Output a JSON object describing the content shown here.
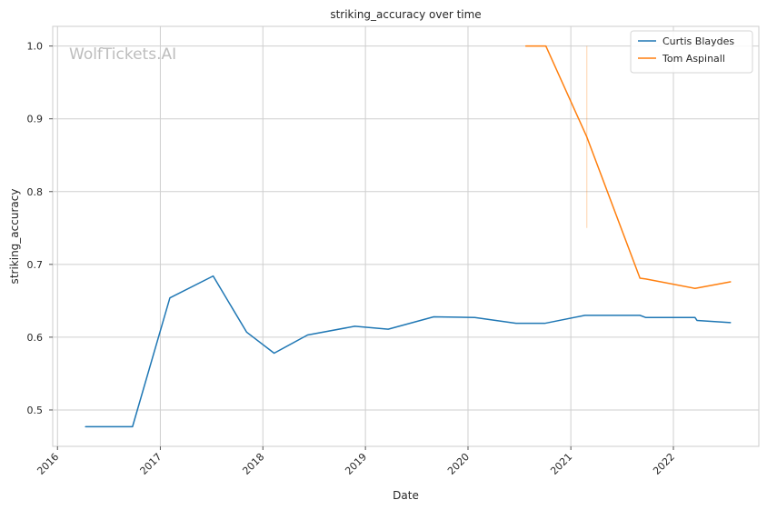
{
  "chart_data": {
    "type": "line",
    "title": "striking_accuracy over time",
    "xlabel": "Date",
    "ylabel": "striking_accuracy",
    "watermark": "WolfTickets.AI",
    "xlim": [
      "2015-12-15",
      "2022-11-01"
    ],
    "ylim": [
      0.45,
      1.027
    ],
    "x_ticks": [
      "2016-01-01",
      "2017-01-01",
      "2018-01-01",
      "2019-01-01",
      "2020-01-01",
      "2021-01-01",
      "2022-01-01"
    ],
    "x_tick_labels": [
      "2016",
      "2017",
      "2018",
      "2019",
      "2020",
      "2021",
      "2022"
    ],
    "y_ticks": [
      0.5,
      0.6,
      0.7,
      0.8,
      0.9,
      1.0
    ],
    "y_tick_labels": [
      "0.5",
      "0.6",
      "0.7",
      "0.8",
      "0.9",
      "1.0"
    ],
    "grid": true,
    "legend_position": "top-right",
    "series": [
      {
        "name": "Curtis Blaydes",
        "color": "#1f77b4",
        "points": [
          [
            "2016-04-10",
            0.477
          ],
          [
            "2016-09-24",
            0.477
          ],
          [
            "2017-02-04",
            0.654
          ],
          [
            "2017-07-08",
            0.684
          ],
          [
            "2017-11-04",
            0.607
          ],
          [
            "2018-02-10",
            0.578
          ],
          [
            "2018-06-09",
            0.603
          ],
          [
            "2018-11-24",
            0.615
          ],
          [
            "2019-03-23",
            0.611
          ],
          [
            "2019-09-01",
            0.628
          ],
          [
            "2020-01-25",
            0.627
          ],
          [
            "2020-06-20",
            0.619
          ],
          [
            "2020-09-30",
            0.619
          ],
          [
            "2021-02-20",
            0.63
          ],
          [
            "2021-09-04",
            0.63
          ],
          [
            "2021-09-25",
            0.627
          ],
          [
            "2022-03-19",
            0.627
          ],
          [
            "2022-03-26",
            0.623
          ],
          [
            "2022-07-23",
            0.62
          ]
        ]
      },
      {
        "name": "Tom Aspinall",
        "color": "#ff7f0e",
        "points": [
          [
            "2020-07-25",
            1.0
          ],
          [
            "2020-10-04",
            1.0
          ],
          [
            "2021-02-27",
            0.875
          ],
          [
            "2021-09-04",
            0.681
          ],
          [
            "2021-09-25",
            0.68
          ],
          [
            "2022-03-19",
            0.667
          ],
          [
            "2022-07-23",
            0.676
          ]
        ]
      }
    ],
    "annotations": [
      {
        "type": "vertical-line",
        "x": "2021-02-27",
        "y_range": [
          0.75,
          1.0
        ],
        "color": "#ff7f0e"
      }
    ]
  }
}
